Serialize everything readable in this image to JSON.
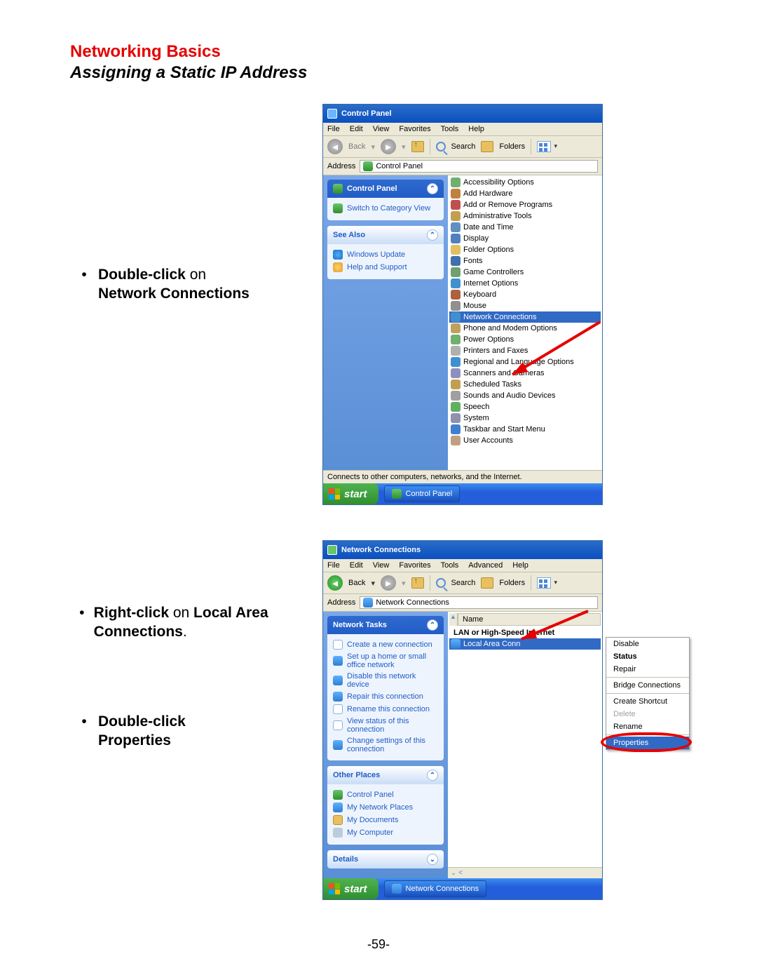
{
  "doc": {
    "heading": "Networking Basics",
    "subheading": "Assigning a Static IP Address",
    "page_number": "-59-"
  },
  "instr1": {
    "bold": "Double-click",
    "mid": " on ",
    "bold2": "Network Connections"
  },
  "instr2a": {
    "bold": "Right-click",
    "mid": " on ",
    "bold2": "Local Area Connections",
    "tail": "."
  },
  "instr2b": {
    "bold": "Double-click",
    "br": "Properties"
  },
  "win1": {
    "title": "Control Panel",
    "menu": [
      "File",
      "Edit",
      "View",
      "Favorites",
      "Tools",
      "Help"
    ],
    "back": "Back",
    "search": "Search",
    "folders": "Folders",
    "addr_label": "Address",
    "addr_value": "Control Panel",
    "panel_hdr": "Control Panel",
    "switch_link": "Switch to Category View",
    "seealso_hdr": "See Also",
    "seealso": [
      "Windows Update",
      "Help and Support"
    ],
    "items": [
      "Accessibility Options",
      "Add Hardware",
      "Add or Remove Programs",
      "Administrative Tools",
      "Date and Time",
      "Display",
      "Folder Options",
      "Fonts",
      "Game Controllers",
      "Internet Options",
      "Keyboard",
      "Mouse",
      "Network Connections",
      "Phone and Modem Options",
      "Power Options",
      "Printers and Faxes",
      "Regional and Language Options",
      "Scanners and Cameras",
      "Scheduled Tasks",
      "Sounds and Audio Devices",
      "Speech",
      "System",
      "Taskbar and Start Menu",
      "User Accounts"
    ],
    "selected_index": 12,
    "status": "Connects to other computers, networks, and the Internet.",
    "start": "start",
    "tasktab": "Control Panel"
  },
  "win2": {
    "title": "Network Connections",
    "menu": [
      "File",
      "Edit",
      "View",
      "Favorites",
      "Tools",
      "Advanced",
      "Help"
    ],
    "back": "Back",
    "search": "Search",
    "folders": "Folders",
    "addr_label": "Address",
    "addr_value": "Network Connections",
    "tasks_hdr": "Network Tasks",
    "tasks": [
      "Create a new connection",
      "Set up a home or small office network",
      "Disable this network device",
      "Repair this connection",
      "Rename this connection",
      "View status of this connection",
      "Change settings of this connection"
    ],
    "places_hdr": "Other Places",
    "places": [
      "Control Panel",
      "My Network Places",
      "My Documents",
      "My Computer"
    ],
    "details_hdr": "Details",
    "list_hdr": "Name",
    "group_hdr": "LAN or High-Speed Internet",
    "conn_item": "Local Area Conn",
    "ctx": [
      "Disable",
      "Status",
      "Repair",
      "Bridge Connections",
      "Create Shortcut",
      "Delete",
      "Rename",
      "Properties"
    ],
    "start": "start",
    "tasktab": "Network Connections"
  }
}
